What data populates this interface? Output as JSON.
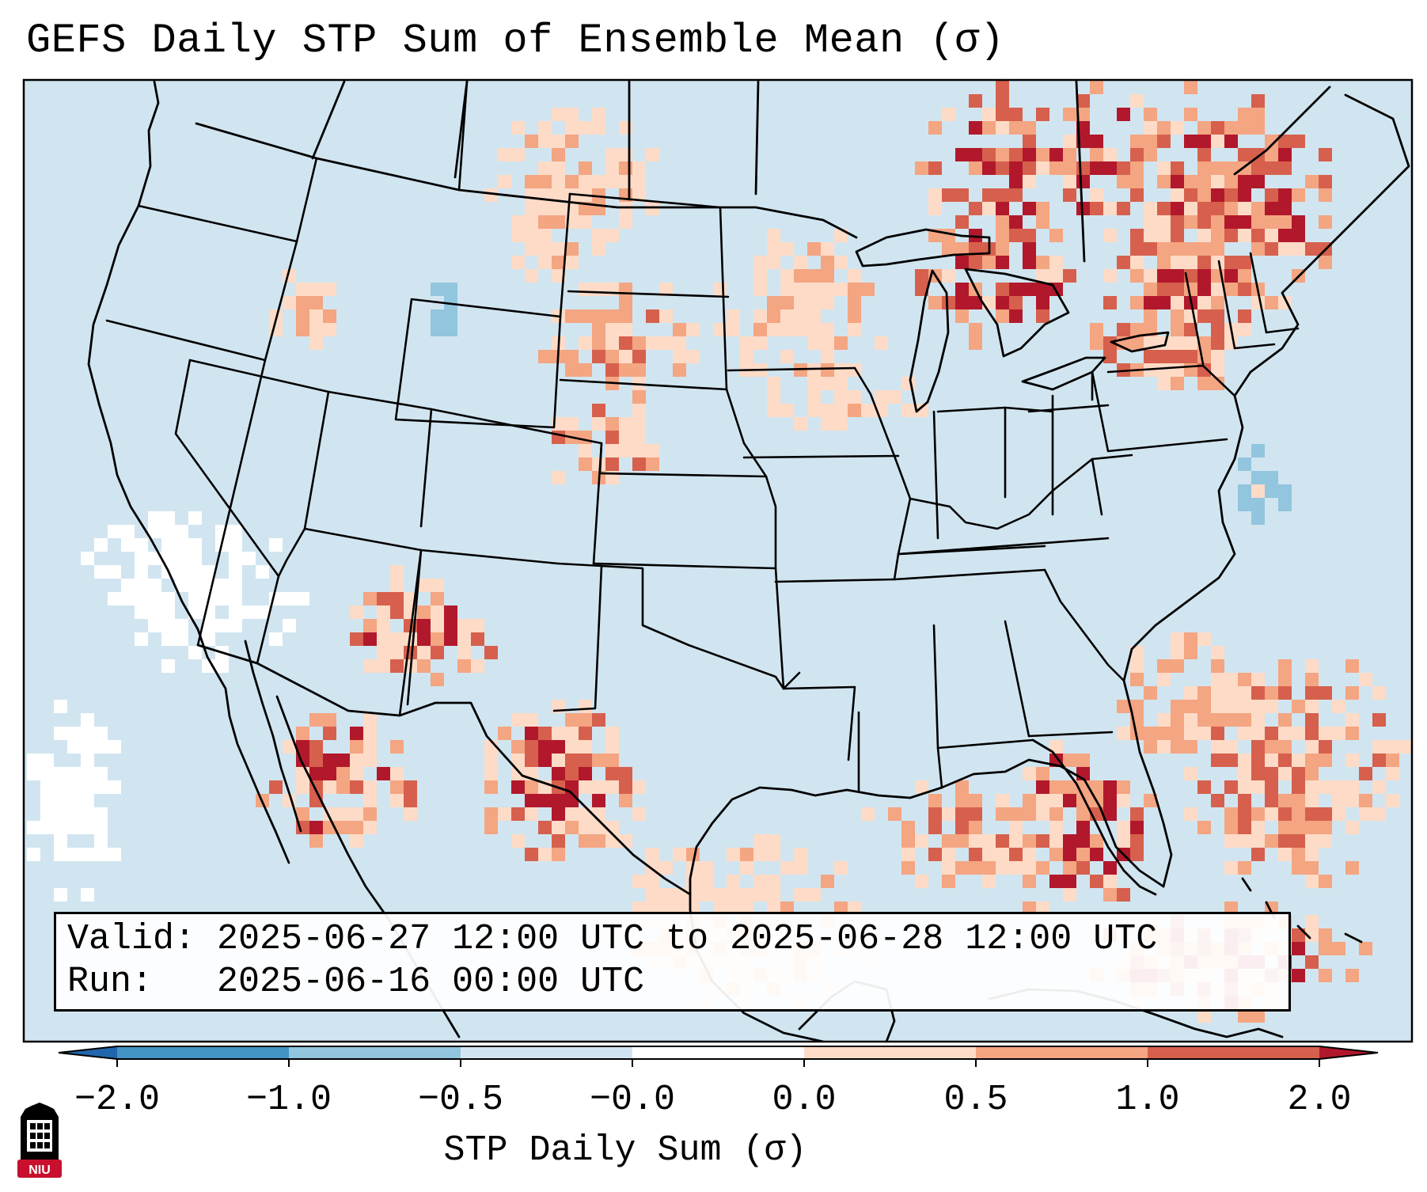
{
  "figure": {
    "title": "GEFS Daily STP Sum of Ensemble Mean (σ)",
    "valid_label": "Valid:",
    "valid_text": "2025-06-27 12:00 UTC to 2025-06-28 12:00 UTC",
    "run_label": "Run:",
    "run_text": "2025-06-16 00:00 UTC"
  },
  "map": {
    "region": "Continental United States, southern Canada, northern Mexico, Gulf of Mexico",
    "projection": "Lambert conformal",
    "background_color": "#d1e5f0",
    "boundary_color": "#000000",
    "layers": [
      "coastlines",
      "international borders",
      "state borders"
    ],
    "anomaly_regions": [
      {
        "name": "Great Lakes / Upper Midwest",
        "intensity": "high positive"
      },
      {
        "name": "Ontario / Quebec / New England",
        "intensity": "high positive"
      },
      {
        "name": "Florida / eastern Gulf",
        "intensity": "high positive"
      },
      {
        "name": "western Atlantic",
        "intensity": "moderate positive"
      },
      {
        "name": "Four Corners / northern Mexico",
        "intensity": "scattered positive"
      },
      {
        "name": "Great Basin / eastern Pacific",
        "intensity": "near zero"
      }
    ]
  },
  "colorbar": {
    "label": "STP Daily Sum (σ)",
    "ticks": [
      "−2.0",
      "−1.0",
      "−0.5",
      "−0.0",
      "0.0",
      "0.5",
      "1.0",
      "2.0"
    ],
    "bin_colors": [
      "#4393c3",
      "#92c5de",
      "#d1e5f0",
      "#ffffff",
      "#fddbc7",
      "#f4a582",
      "#d6604d"
    ],
    "under_color": "#2166ac",
    "over_color": "#b2182b",
    "extend": "both"
  },
  "logo": {
    "text": "NIU",
    "colors": [
      "#000000",
      "#c8102e",
      "#ffffff"
    ]
  }
}
